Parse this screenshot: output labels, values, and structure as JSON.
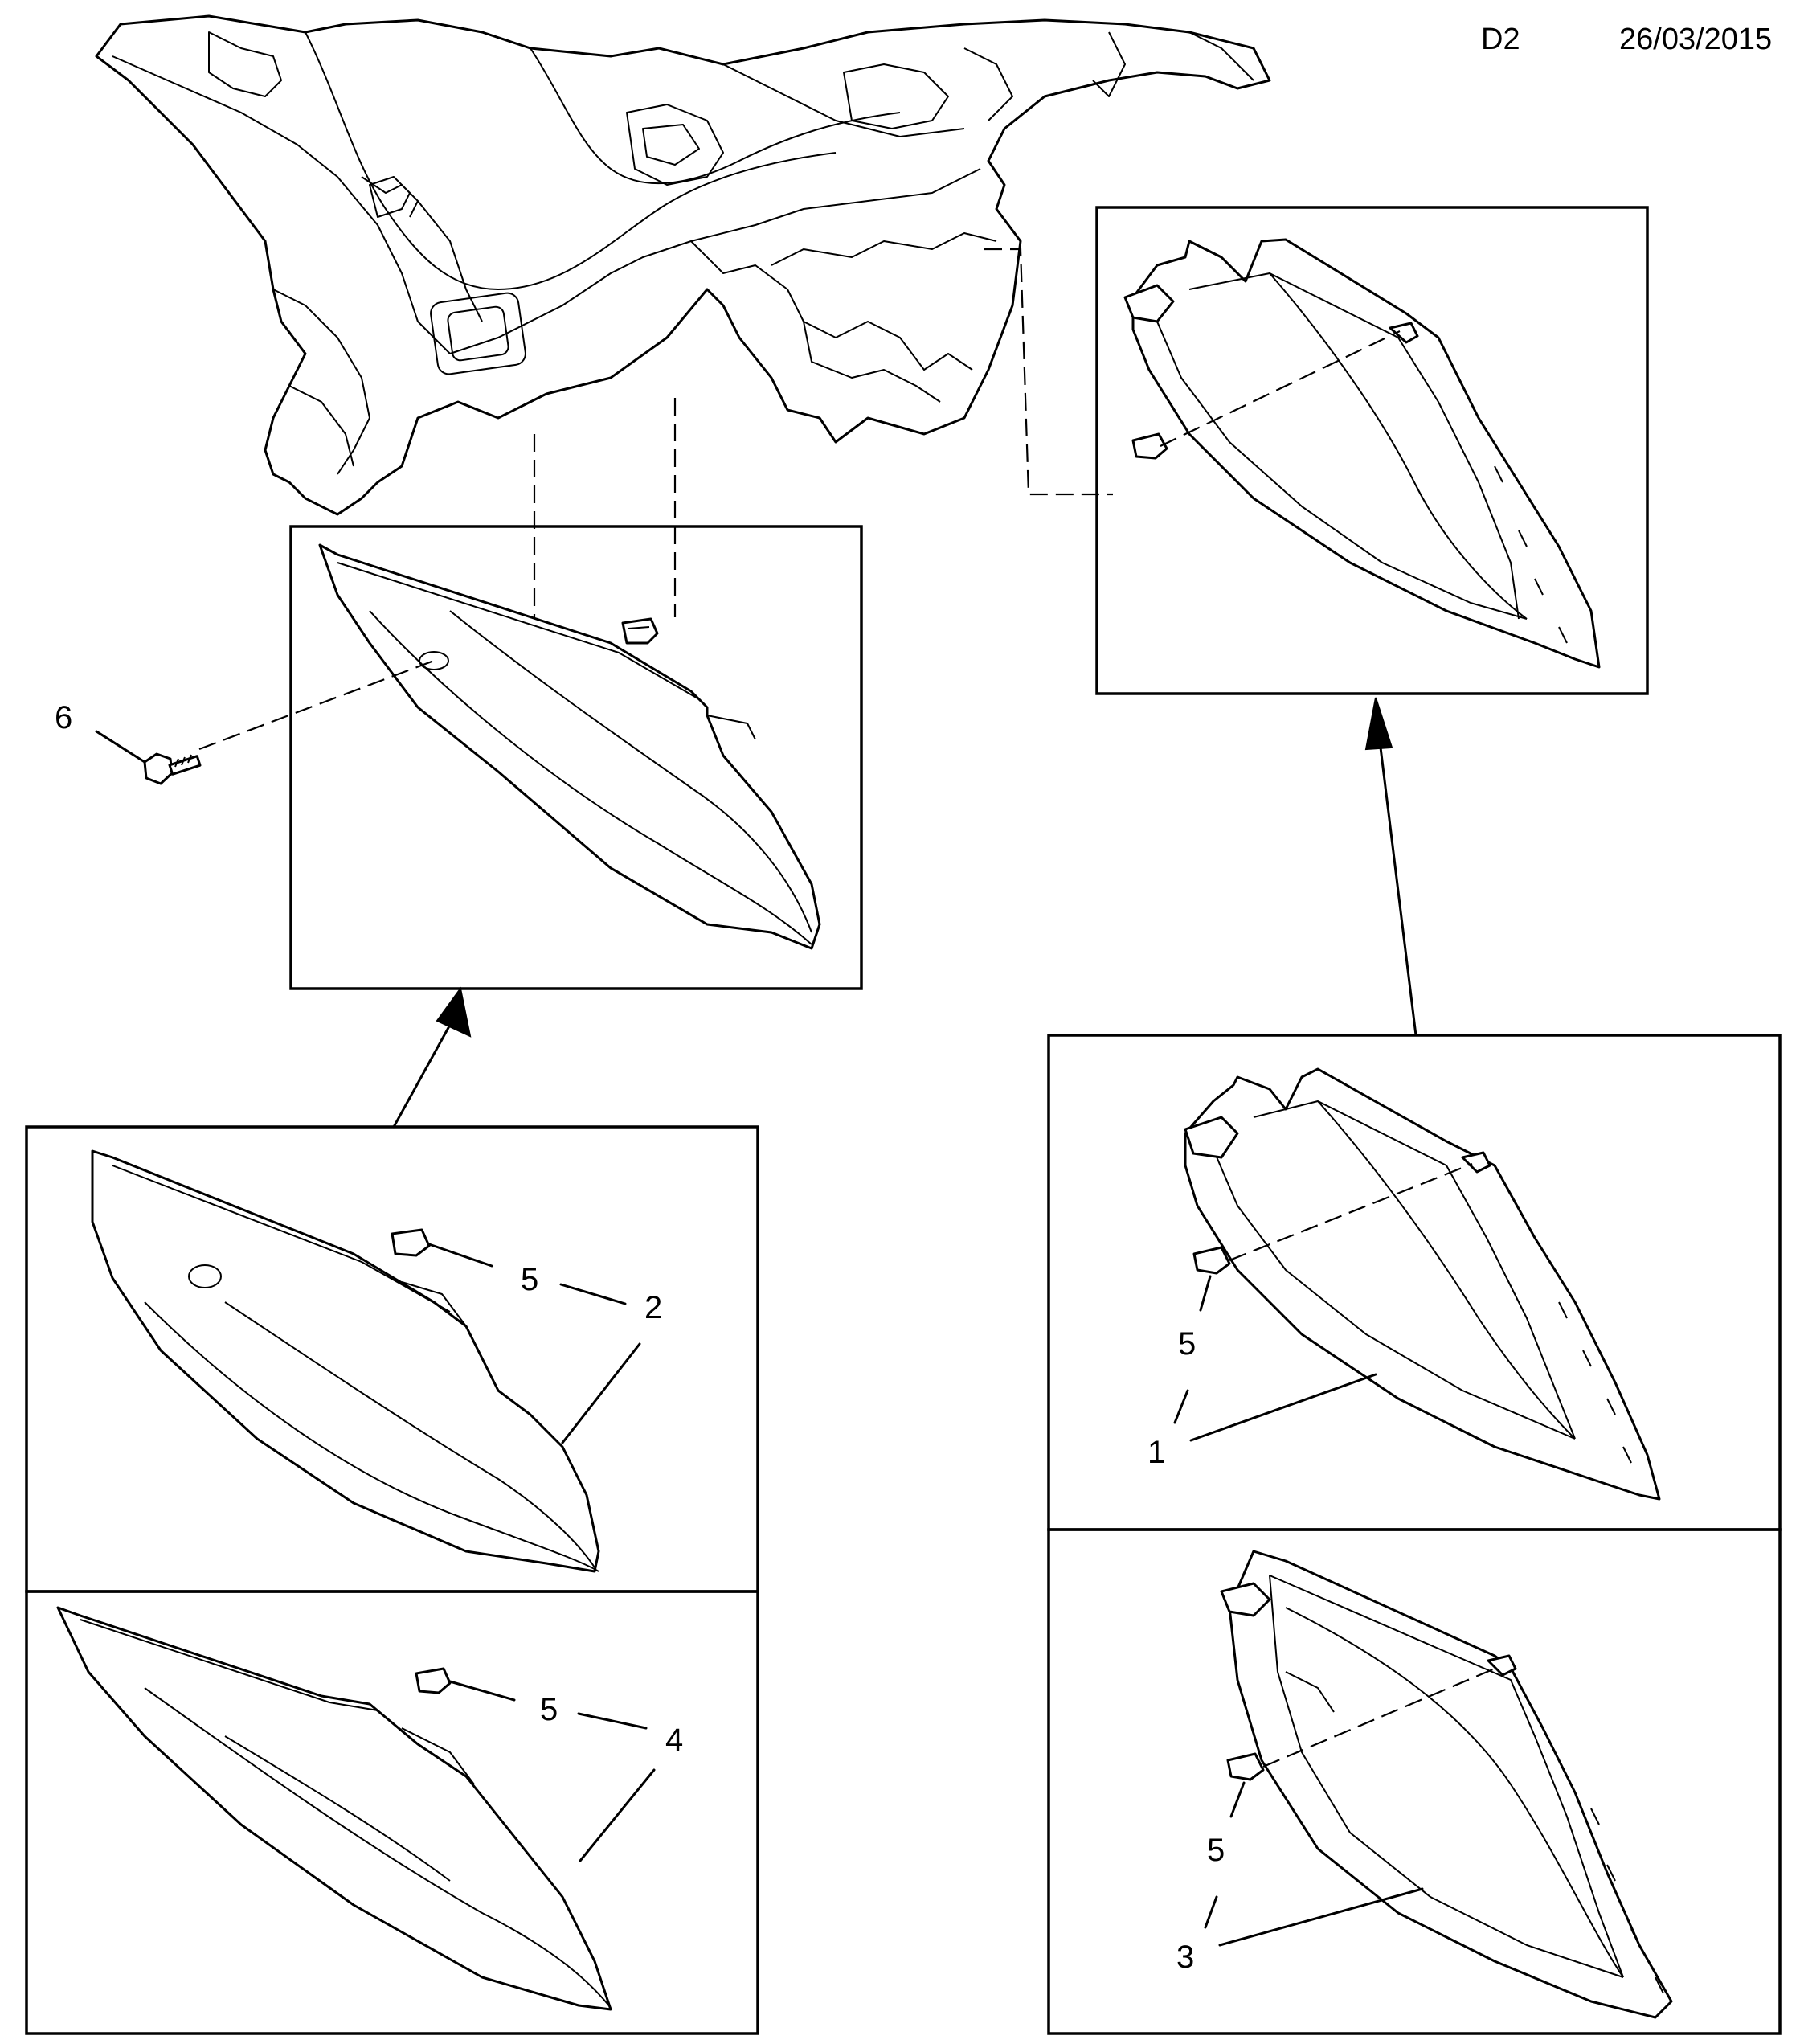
{
  "header": {
    "code": "D2",
    "date": "26/03/2015"
  },
  "callouts": {
    "c1": "1",
    "c2": "2",
    "c3": "3",
    "c4": "4",
    "c6": "6",
    "c5a": "5",
    "c5b": "5",
    "c5c": "5",
    "c5d": "5"
  },
  "icons": {
    "dashboard": "dashboard-assembly-illustration",
    "screw": "screw-icon",
    "clip": "retaining-clip-icon",
    "arrow": "arrow-up-icon"
  }
}
